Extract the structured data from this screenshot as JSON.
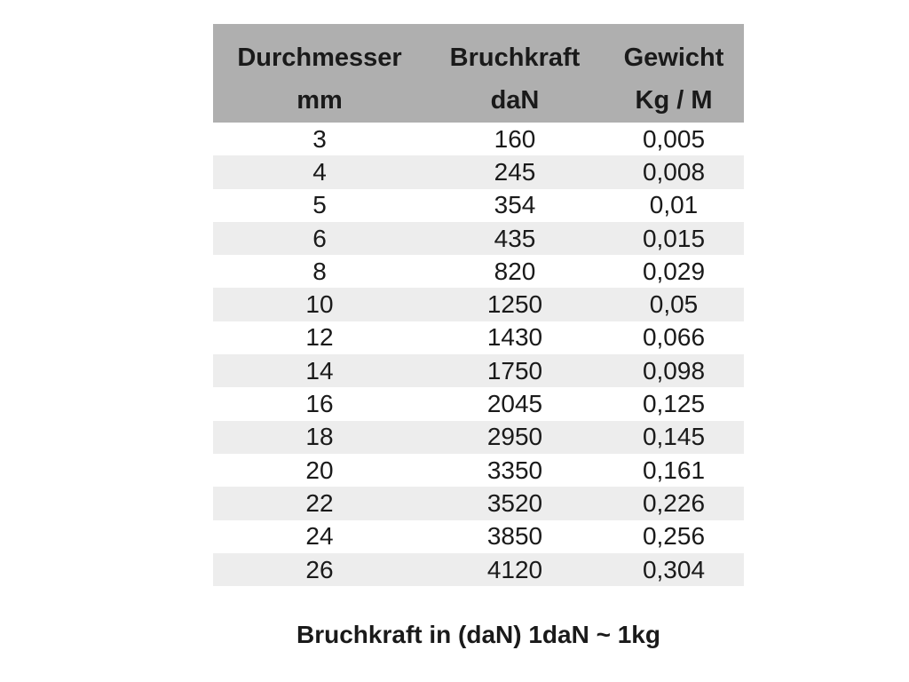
{
  "page": {
    "background": "#FFFFFF",
    "text_color": "#1A1A1A"
  },
  "table": {
    "header_bg": "#AFAFAF",
    "stripe_bg": "#EDEDED",
    "column_keys": [
      "durchmesser",
      "bruchkraft",
      "gewicht"
    ],
    "columns": [
      {
        "name": "Durchmesser",
        "unit": "mm"
      },
      {
        "name": "Bruchkraft",
        "unit": "daN"
      },
      {
        "name": "Gewicht",
        "unit": "Kg / M"
      }
    ],
    "rows": [
      [
        "3",
        "160",
        "0,005"
      ],
      [
        "4",
        "245",
        "0,008"
      ],
      [
        "5",
        "354",
        "0,01"
      ],
      [
        "6",
        "435",
        "0,015"
      ],
      [
        "8",
        "820",
        "0,029"
      ],
      [
        "10",
        "1250",
        "0,05"
      ],
      [
        "12",
        "1430",
        "0,066"
      ],
      [
        "14",
        "1750",
        "0,098"
      ],
      [
        "16",
        "2045",
        "0,125"
      ],
      [
        "18",
        "2950",
        "0,145"
      ],
      [
        "20",
        "3350",
        "0,161"
      ],
      [
        "22",
        "3520",
        "0,226"
      ],
      [
        "24",
        "3850",
        "0,256"
      ],
      [
        "26",
        "4120",
        "0,304"
      ]
    ]
  },
  "footer": {
    "note": "Bruchkraft in (daN) 1daN ~ 1kg"
  },
  "chart_data": {
    "type": "table",
    "title": "",
    "columns": [
      "Durchmesser mm",
      "Bruchkraft daN",
      "Gewicht Kg / M"
    ],
    "rows": [
      [
        3,
        160,
        "0,005"
      ],
      [
        4,
        245,
        "0,008"
      ],
      [
        5,
        354,
        "0,01"
      ],
      [
        6,
        435,
        "0,015"
      ],
      [
        8,
        820,
        "0,029"
      ],
      [
        10,
        1250,
        "0,05"
      ],
      [
        12,
        1430,
        "0,066"
      ],
      [
        14,
        1750,
        "0,098"
      ],
      [
        16,
        2045,
        "0,125"
      ],
      [
        18,
        2950,
        "0,145"
      ],
      [
        20,
        3350,
        "0,161"
      ],
      [
        22,
        3520,
        "0,226"
      ],
      [
        24,
        3850,
        "0,256"
      ],
      [
        26,
        4120,
        "0,304"
      ]
    ],
    "footnote": "Bruchkraft in (daN) 1daN ~ 1kg",
    "layout": {
      "zebra_stripes": true,
      "header_background": "#AFAFAF"
    }
  }
}
